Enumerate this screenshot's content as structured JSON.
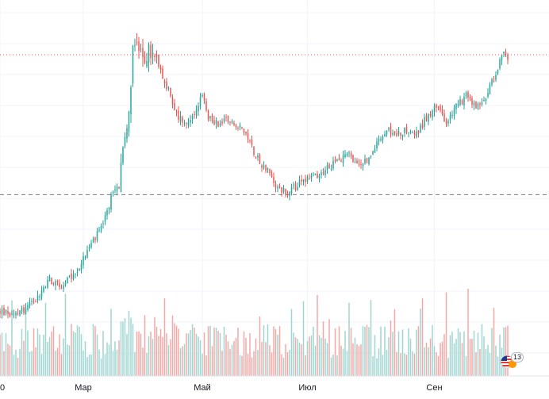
{
  "chart_data": {
    "type": "candlestick",
    "x_tick_labels": [
      "0",
      "Мар",
      "Май",
      "Июл",
      "Сен"
    ],
    "x_ticks_day_index": [
      0,
      42,
      102,
      155,
      219
    ],
    "price_ylim": [
      30,
      160
    ],
    "volume_max": 100,
    "price_keypoints": [
      [
        0,
        48
      ],
      [
        8,
        47
      ],
      [
        18,
        52
      ],
      [
        25,
        60
      ],
      [
        30,
        57
      ],
      [
        38,
        62
      ],
      [
        45,
        72
      ],
      [
        52,
        80
      ],
      [
        57,
        93
      ],
      [
        60,
        95
      ],
      [
        62,
        112
      ],
      [
        65,
        120
      ],
      [
        67,
        148
      ],
      [
        70,
        146
      ],
      [
        72,
        140
      ],
      [
        75,
        145
      ],
      [
        80,
        140
      ],
      [
        85,
        130
      ],
      [
        90,
        120
      ],
      [
        95,
        118
      ],
      [
        100,
        125
      ],
      [
        102,
        128
      ],
      [
        105,
        120
      ],
      [
        110,
        118
      ],
      [
        115,
        120
      ],
      [
        120,
        117
      ],
      [
        125,
        112
      ],
      [
        130,
        105
      ],
      [
        135,
        100
      ],
      [
        140,
        94
      ],
      [
        145,
        92
      ],
      [
        150,
        95
      ],
      [
        155,
        98
      ],
      [
        160,
        99
      ],
      [
        170,
        104
      ],
      [
        175,
        107
      ],
      [
        180,
        102
      ],
      [
        185,
        104
      ],
      [
        190,
        110
      ],
      [
        195,
        115
      ],
      [
        200,
        114
      ],
      [
        205,
        116
      ],
      [
        210,
        114
      ],
      [
        215,
        120
      ],
      [
        220,
        125
      ],
      [
        225,
        118
      ],
      [
        230,
        124
      ],
      [
        235,
        128
      ],
      [
        240,
        124
      ],
      [
        245,
        128
      ],
      [
        250,
        137
      ],
      [
        254,
        145
      ],
      [
        256,
        143
      ]
    ],
    "horizontal_levels": [
      {
        "price": 143.5,
        "style": "dotted",
        "color": "#ef5350"
      },
      {
        "price": 91.5,
        "style": "dashed",
        "color": "#787b86"
      }
    ],
    "colors": {
      "up": "#26a69a",
      "down": "#ef5350",
      "volume_up": "#9fd6d0",
      "volume_down": "#f4a8a6",
      "grid": "#f0f3fa",
      "axis_text": "#131722"
    },
    "grid": true,
    "legend": "none"
  },
  "flag_badge": {
    "icon": "us-flag-icon",
    "count": "13"
  }
}
